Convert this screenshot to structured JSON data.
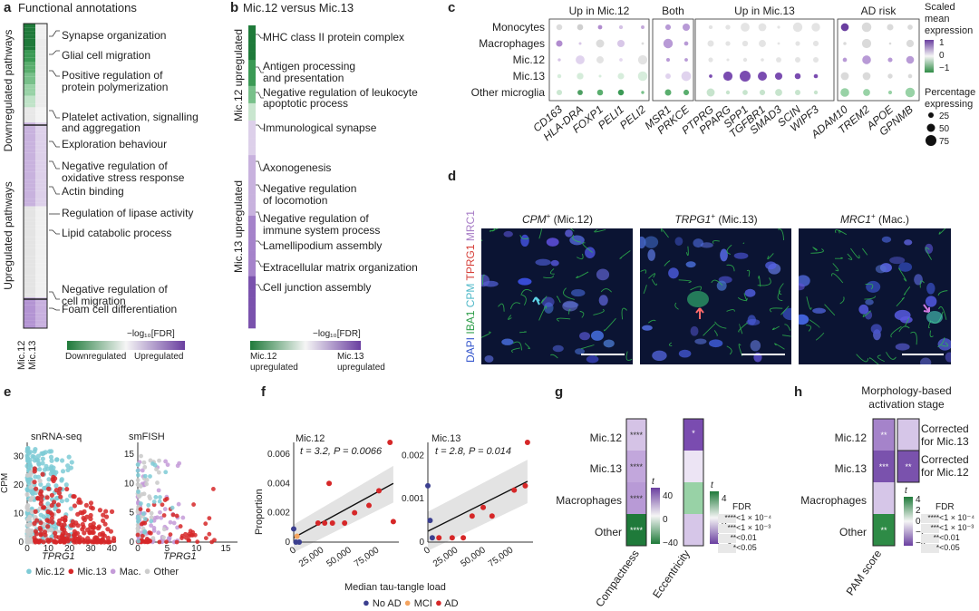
{
  "panels": {
    "a": "a",
    "b": "b",
    "c": "c",
    "d": "d",
    "e": "e",
    "f": "f",
    "g": "g",
    "h": "h"
  },
  "a": {
    "title": "Functional annotations",
    "side_down": "Downregulated pathways",
    "side_up": "Upregulated pathways",
    "terms": [
      "Synapse organization",
      "Glial cell migration",
      "Positive regulation of",
      "protein polymerization",
      "Platelet activation, signalling",
      "and aggregation",
      "Exploration behaviour",
      "Negative regulation of",
      "oxidative stress response",
      "Actin binding",
      "Regulation of lipase activity",
      "Lipid catabolic process",
      "Negative regulation of",
      "cell migration",
      "Foam cell differentiation"
    ],
    "cols": [
      "Mic.12",
      "Mic.13"
    ],
    "legend_title": "−log₁₀[FDR]",
    "legend_left": "Downregulated",
    "legend_right": "Upregulated"
  },
  "b": {
    "title": "Mic.12 versus Mic.13",
    "side_up12": "Mic.12 upregulated",
    "side_up13": "Mic.13 upregulated",
    "terms": [
      "MHC class II protein complex",
      "Antigen processing",
      "and presentation",
      "Negative regulation of leukocyte",
      "apoptotic process",
      "Immunological synapse",
      "Axonogenesis",
      "Negative regulation",
      "of locomotion",
      "Negative regulation of",
      "immune system process",
      "Lamellipodium assembly",
      "Extracellular matrix organization",
      "Cell junction assembly"
    ],
    "legend_title": "−log₁₀[FDR]",
    "legend_left_1": "Mic.12",
    "legend_left_2": "upregulated",
    "legend_right_1": "Mic.13",
    "legend_right_2": "upregulated"
  },
  "c": {
    "groups": [
      "Up in Mic.12",
      "Both",
      "Up in Mic.13",
      "AD risk"
    ],
    "rows": [
      "Monocytes",
      "Macrophages",
      "Mic.12",
      "Mic.13",
      "Other microglia"
    ],
    "genes": [
      "CD163",
      "HLA-DRA",
      "FOXP1",
      "PELI1",
      "PELI2",
      "MSR1",
      "PRKCE",
      "PTPRG",
      "PPARG",
      "SPP1",
      "TGFBR1",
      "SMAD3",
      "SCIN",
      "WIPF3",
      "ADAM10",
      "TREM2",
      "APOE",
      "GPNMB"
    ],
    "legend_title_1": "Scaled",
    "legend_title_2": "mean",
    "legend_title_3": "expression",
    "legend_ticks": [
      "1",
      "0",
      "−1"
    ],
    "size_title_1": "Percentage",
    "size_title_2": "expressing",
    "size_ticks": [
      "25",
      "50",
      "75"
    ]
  },
  "d": {
    "panels": [
      {
        "gene": "CPM",
        "sup": "+",
        "label": " (Mic.12)"
      },
      {
        "gene": "TRPG1",
        "sup": "+",
        "label": " (Mic.13)"
      },
      {
        "gene": "MRC1",
        "sup": "+",
        "label": " (Mac.)"
      }
    ],
    "stain": {
      "dapi": "DAPI",
      "iba1": "IBA1",
      "cpm": "CPM",
      "trpg1": "TPRG1",
      "mrc1": "MRC1"
    }
  },
  "e": {
    "left_title": "snRNA-seq",
    "right_title": "smFISH",
    "ylabel": "CPM",
    "xlabel": "TPRG1",
    "left_yticks": [
      "0",
      "10",
      "20",
      "30"
    ],
    "left_xticks": [
      "0",
      "10",
      "20",
      "30",
      "40"
    ],
    "right_yticks": [
      "0",
      "5",
      "10",
      "15"
    ],
    "right_xticks": [
      "0",
      "5",
      "10",
      "15"
    ],
    "legend": [
      "Mic.12",
      "Mic.13",
      "Mac.",
      "Other"
    ]
  },
  "f": {
    "left_title": "Mic.12",
    "right_title": "Mic.13",
    "left_stat": "t = 3.2, P = 0.0066",
    "right_stat": "t = 2.8, P = 0.014",
    "ylabel": "Proportion",
    "xlabel": "Median tau-tangle load",
    "left_yticks": [
      "0",
      "0.002",
      "0.004",
      "0.006"
    ],
    "right_yticks": [
      "0",
      "0.001",
      "0.002"
    ],
    "xticks": [
      "0",
      "25,000",
      "50,000",
      "75,000"
    ],
    "legend": [
      "No AD",
      "MCI",
      "AD"
    ]
  },
  "g": {
    "rows": [
      "Mic.12",
      "Mic.13",
      "Macrophages",
      "Other"
    ],
    "col1": "Compactness",
    "col2": "Eccentricity",
    "stars1": [
      "****",
      "****",
      "****",
      "****"
    ],
    "stars2": [
      "*"
    ],
    "t_label": "t",
    "t1_ticks": [
      "40",
      "0",
      "−40"
    ],
    "t2_ticks": [
      "4",
      "0",
      "−4"
    ],
    "fdr_title": "FDR",
    "fdr": [
      {
        "s": "****",
        "v": "<1 × 10⁻⁴"
      },
      {
        "s": "***",
        "v": "<1 × 10⁻³"
      },
      {
        "s": "**",
        "v": "<0.01"
      },
      {
        "s": "*",
        "v": "<0.05"
      }
    ]
  },
  "h": {
    "title_1": "Morphology-based",
    "title_2": "activation stage",
    "rows": [
      "Mic.12",
      "Mic.13",
      "Macrophages",
      "Other"
    ],
    "col": "PAM score",
    "stars_main": [
      "**",
      "***",
      "",
      "**"
    ],
    "stars_corr": [
      "**"
    ],
    "corr_1a": "Corrected",
    "corr_1b": "for Mic.13",
    "corr_2a": "Corrected",
    "corr_2b": "for Mic.12",
    "t_label": "t",
    "t_ticks": [
      "4",
      "2",
      "0",
      "−2",
      "−4"
    ],
    "fdr_title": "FDR",
    "fdr": [
      {
        "s": "****",
        "v": "<1 × 10⁻⁴"
      },
      {
        "s": "***",
        "v": "<1 × 10⁻³"
      },
      {
        "s": "**",
        "v": "<0.01"
      },
      {
        "s": "*",
        "v": "<0.05"
      }
    ]
  },
  "colors": {
    "green": "#2e8b46",
    "purple": "#6a3fa0",
    "red": "#d62728",
    "cyan": "#7ecbd6",
    "lilac": "#c49bd8",
    "grey": "#cccccc",
    "navy": "#3b3f8f",
    "orange": "#f4a460"
  }
}
